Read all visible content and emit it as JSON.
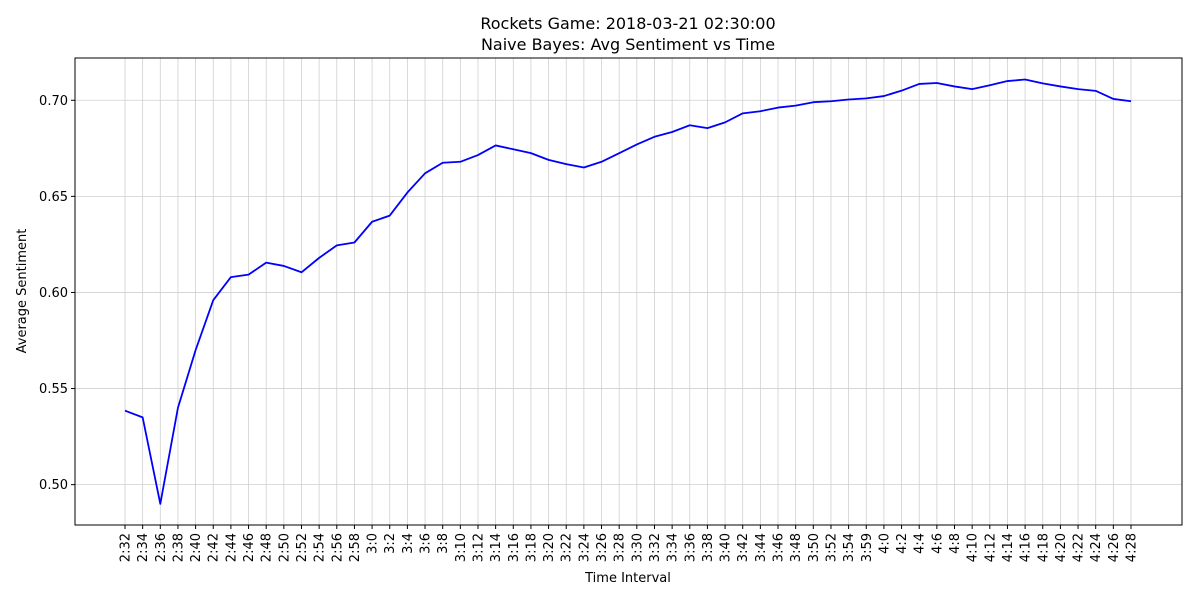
{
  "chart_data": {
    "type": "line",
    "title": "Rockets Game: 2018-03-21 02:30:00",
    "subtitle": "Naive Bayes: Avg Sentiment vs Time",
    "xlabel": "Time Interval",
    "ylabel": "Average Sentiment",
    "ylim": [
      0.479,
      0.722
    ],
    "yticks": [
      0.5,
      0.55,
      0.6,
      0.65,
      0.7
    ],
    "ytick_labels": [
      "0.50",
      "0.55",
      "0.60",
      "0.65",
      "0.70"
    ],
    "grid": true,
    "line_color": "#0000ff",
    "categories": [
      "2:32",
      "2:34",
      "2:36",
      "2:38",
      "2:40",
      "2:42",
      "2:44",
      "2:46",
      "2:48",
      "2:50",
      "2:52",
      "2:54",
      "2:56",
      "2:58",
      "3:0",
      "3:2",
      "3:4",
      "3:6",
      "3:8",
      "3:10",
      "3:12",
      "3:14",
      "3:16",
      "3:18",
      "3:20",
      "3:22",
      "3:24",
      "3:26",
      "3:28",
      "3:30",
      "3:32",
      "3:34",
      "3:36",
      "3:38",
      "3:40",
      "3:42",
      "3:44",
      "3:46",
      "3:48",
      "3:50",
      "3:52",
      "3:54",
      "3:59",
      "4:0",
      "4:2",
      "4:4",
      "4:6",
      "4:8",
      "4:10",
      "4:12",
      "4:14",
      "4:16",
      "4:18",
      "4:20",
      "4:22",
      "4:24",
      "4:26",
      "4:28"
    ],
    "values": [
      0.5385,
      0.535,
      0.49,
      0.54,
      0.57,
      0.596,
      0.608,
      0.6093,
      0.6155,
      0.6138,
      0.6105,
      0.618,
      0.6245,
      0.626,
      0.6368,
      0.64,
      0.652,
      0.662,
      0.6675,
      0.668,
      0.6715,
      0.6765,
      0.6745,
      0.6725,
      0.669,
      0.6668,
      0.665,
      0.668,
      0.6725,
      0.677,
      0.681,
      0.6835,
      0.687,
      0.6855,
      0.6885,
      0.6932,
      0.6943,
      0.6962,
      0.6972,
      0.699,
      0.6995,
      0.7004,
      0.701,
      0.7022,
      0.705,
      0.7085,
      0.709,
      0.7072,
      0.7058,
      0.7078,
      0.71,
      0.7108,
      0.7088,
      0.7072,
      0.7058,
      0.7049,
      0.7007,
      0.6995
    ]
  }
}
